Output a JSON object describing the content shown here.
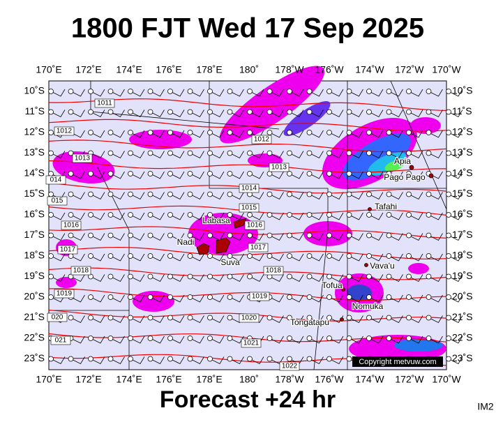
{
  "title": "1800 FJT Wed 17 Sep 2025",
  "footer": "Forecast +24 hr",
  "corner_label": "IM2",
  "copyright": "Copyright metvuw.com",
  "lon_labels": [
    "170˚E",
    "172˚E",
    "174˚E",
    "176˚E",
    "178˚E",
    "180˚",
    "178˚W",
    "176˚W",
    "174˚W",
    "172˚W",
    "170˚W"
  ],
  "lat_labels": [
    "10˚S",
    "11˚S",
    "12˚S",
    "13˚S",
    "14˚S",
    "15˚S",
    "16˚S",
    "17˚S",
    "18˚S",
    "19˚S",
    "20˚S",
    "21˚S",
    "22˚S",
    "23˚S"
  ],
  "places": [
    "Apia",
    "Pago Pago",
    "Tafahi",
    "Labasa",
    "Nadi",
    "Suva",
    "Vava'u",
    "Tofua",
    "Nomuka",
    "Tongatapu"
  ],
  "isobar_labels": [
    "1011",
    "1012",
    "1012",
    "1013",
    "1013",
    "014",
    "1014",
    "015",
    "1015",
    "1016",
    "1016",
    "1017",
    "1017",
    "1018",
    "1018",
    "1019",
    "1019",
    "020",
    "1020",
    "021",
    "1021",
    "1022"
  ]
}
